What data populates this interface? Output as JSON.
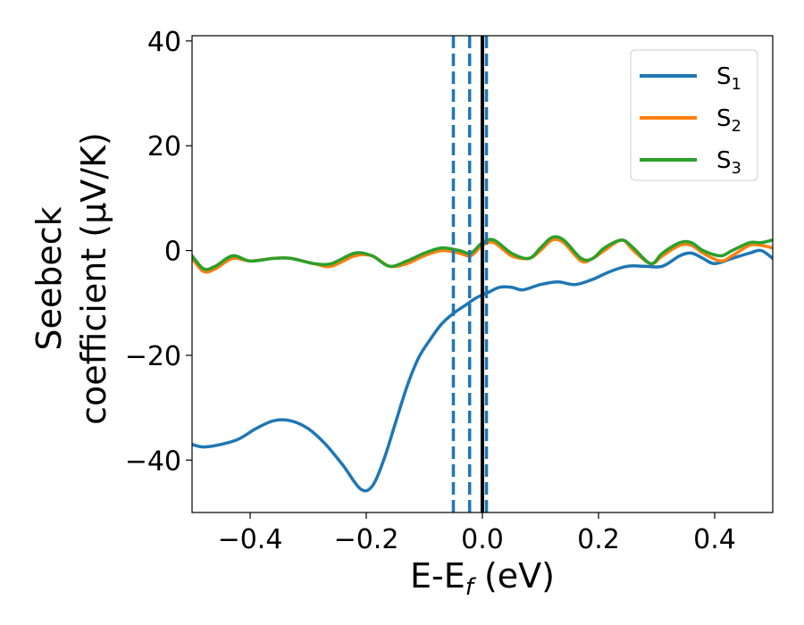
{
  "chart_data": {
    "type": "line",
    "xlabel": {
      "main": "E-E",
      "sub": "f",
      "rest": " (eV)"
    },
    "ylabel": {
      "line1": "Seebeck",
      "line2": "coefficient  (μV/K)"
    },
    "xlim": [
      -0.5,
      0.5
    ],
    "ylim": [
      -50,
      41
    ],
    "x_ticks": [
      -0.4,
      -0.2,
      0.0,
      0.2,
      0.4
    ],
    "x_tick_labels": [
      "−0.4",
      "−0.2",
      "0.0",
      "0.2",
      "0.4"
    ],
    "y_ticks": [
      -40,
      -20,
      0,
      20,
      40
    ],
    "y_tick_labels": [
      "−40",
      "−20",
      "0",
      "20",
      "40"
    ],
    "grid": false,
    "legend_position": "top-right",
    "series": [
      {
        "name": "S",
        "sub": "1",
        "color": "#1f77b4",
        "points": [
          [
            -0.5,
            -37
          ],
          [
            -0.48,
            -37.5
          ],
          [
            -0.45,
            -37
          ],
          [
            -0.42,
            -36
          ],
          [
            -0.39,
            -34
          ],
          [
            -0.36,
            -32.5
          ],
          [
            -0.33,
            -32.5
          ],
          [
            -0.3,
            -34
          ],
          [
            -0.27,
            -37
          ],
          [
            -0.24,
            -41
          ],
          [
            -0.21,
            -45.5
          ],
          [
            -0.19,
            -45
          ],
          [
            -0.17,
            -40
          ],
          [
            -0.15,
            -33
          ],
          [
            -0.13,
            -26
          ],
          [
            -0.11,
            -20.5
          ],
          [
            -0.09,
            -17
          ],
          [
            -0.07,
            -14
          ],
          [
            -0.05,
            -12
          ],
          [
            -0.03,
            -10.5
          ],
          [
            -0.01,
            -9
          ],
          [
            0.01,
            -8
          ],
          [
            0.03,
            -7
          ],
          [
            0.05,
            -7
          ],
          [
            0.07,
            -7.5
          ],
          [
            0.1,
            -6.5
          ],
          [
            0.13,
            -6
          ],
          [
            0.16,
            -6.5
          ],
          [
            0.19,
            -5.5
          ],
          [
            0.22,
            -4
          ],
          [
            0.25,
            -3
          ],
          [
            0.28,
            -3
          ],
          [
            0.31,
            -3
          ],
          [
            0.34,
            -1
          ],
          [
            0.36,
            -0.5
          ],
          [
            0.38,
            -1.5
          ],
          [
            0.4,
            -2.5
          ],
          [
            0.43,
            -1.5
          ],
          [
            0.46,
            -0.5
          ],
          [
            0.48,
            0
          ],
          [
            0.5,
            -1.5
          ]
        ]
      },
      {
        "name": "S",
        "sub": "2",
        "color": "#ff7f0e",
        "points": [
          [
            -0.5,
            -1.5
          ],
          [
            -0.48,
            -4
          ],
          [
            -0.46,
            -3.5
          ],
          [
            -0.43,
            -1.5
          ],
          [
            -0.4,
            -2
          ],
          [
            -0.36,
            -1.5
          ],
          [
            -0.33,
            -1.5
          ],
          [
            -0.29,
            -2.5
          ],
          [
            -0.26,
            -3
          ],
          [
            -0.22,
            -1
          ],
          [
            -0.19,
            -1
          ],
          [
            -0.16,
            -3
          ],
          [
            -0.13,
            -2.5
          ],
          [
            -0.1,
            -1
          ],
          [
            -0.07,
            0
          ],
          [
            -0.04,
            -0.5
          ],
          [
            -0.02,
            -1
          ],
          [
            0.0,
            1
          ],
          [
            0.02,
            1.5
          ],
          [
            0.05,
            -1
          ],
          [
            0.08,
            -1.5
          ],
          [
            0.1,
            0
          ],
          [
            0.12,
            2
          ],
          [
            0.14,
            1.5
          ],
          [
            0.17,
            -2
          ],
          [
            0.19,
            -1.5
          ],
          [
            0.21,
            0
          ],
          [
            0.24,
            2
          ],
          [
            0.26,
            0
          ],
          [
            0.29,
            -2.5
          ],
          [
            0.31,
            -1
          ],
          [
            0.34,
            1
          ],
          [
            0.36,
            1
          ],
          [
            0.38,
            -0.5
          ],
          [
            0.41,
            -2
          ],
          [
            0.43,
            -1
          ],
          [
            0.46,
            1
          ],
          [
            0.48,
            1
          ],
          [
            0.5,
            0.5
          ]
        ]
      },
      {
        "name": "S",
        "sub": "3",
        "color": "#2ca02c",
        "points": [
          [
            -0.5,
            -1
          ],
          [
            -0.48,
            -3.5
          ],
          [
            -0.46,
            -3
          ],
          [
            -0.43,
            -1
          ],
          [
            -0.4,
            -2
          ],
          [
            -0.36,
            -1.5
          ],
          [
            -0.33,
            -1.5
          ],
          [
            -0.29,
            -2.5
          ],
          [
            -0.26,
            -2.5
          ],
          [
            -0.22,
            -0.5
          ],
          [
            -0.19,
            -1
          ],
          [
            -0.16,
            -3
          ],
          [
            -0.13,
            -2
          ],
          [
            -0.1,
            -0.5
          ],
          [
            -0.07,
            0.5
          ],
          [
            -0.04,
            0
          ],
          [
            -0.02,
            -0.5
          ],
          [
            0.0,
            1.5
          ],
          [
            0.02,
            2
          ],
          [
            0.05,
            -0.5
          ],
          [
            0.08,
            -1.5
          ],
          [
            0.1,
            0.5
          ],
          [
            0.12,
            2.5
          ],
          [
            0.14,
            2
          ],
          [
            0.17,
            -1.5
          ],
          [
            0.19,
            -1.5
          ],
          [
            0.21,
            0.5
          ],
          [
            0.24,
            2
          ],
          [
            0.26,
            0.5
          ],
          [
            0.29,
            -2.5
          ],
          [
            0.31,
            -0.5
          ],
          [
            0.34,
            1.5
          ],
          [
            0.36,
            1.5
          ],
          [
            0.38,
            0
          ],
          [
            0.41,
            -1
          ],
          [
            0.43,
            0
          ],
          [
            0.46,
            1.5
          ],
          [
            0.48,
            1.5
          ],
          [
            0.5,
            2
          ]
        ]
      }
    ],
    "vlines": [
      {
        "x": -0.05,
        "color": "#1f77b4",
        "style": "dashed"
      },
      {
        "x": -0.022,
        "color": "#1f77b4",
        "style": "dashed"
      },
      {
        "x": 0.007,
        "color": "#1f77b4",
        "style": "dashed"
      },
      {
        "x": 0.0,
        "color": "#000000",
        "style": "solid"
      }
    ]
  }
}
